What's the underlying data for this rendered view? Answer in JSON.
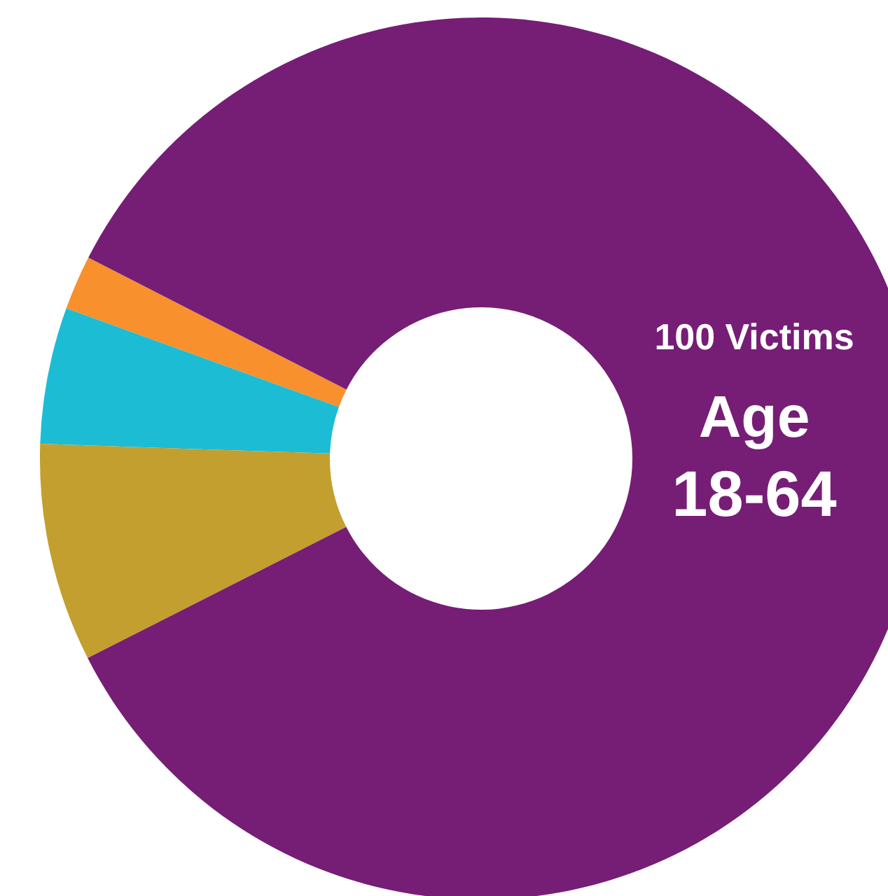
{
  "chart_data": {
    "type": "donut",
    "categories": [
      null,
      null,
      null,
      null
    ],
    "values": [
      2,
      5,
      8,
      85
    ],
    "colors": [
      "#f7902d",
      "#1cbcd4",
      "#c29f2e",
      "#761d76"
    ],
    "annotations": [
      "100 Victims",
      "Age",
      "18-64"
    ]
  }
}
